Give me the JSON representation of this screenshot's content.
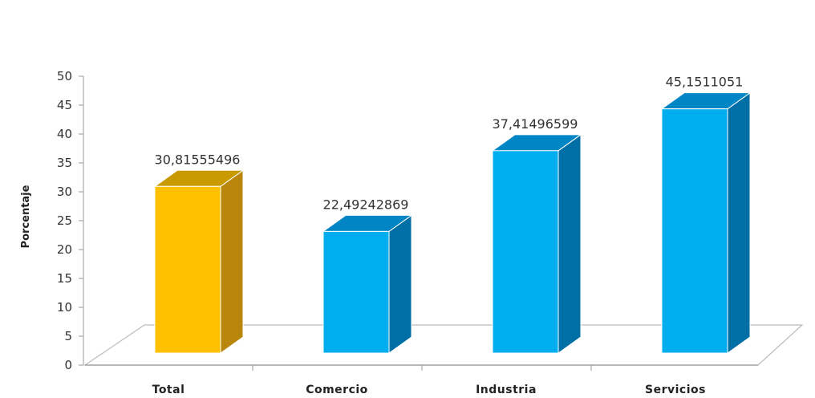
{
  "chart_data": {
    "type": "bar",
    "categories": [
      "Total",
      "Comercio",
      "Industria",
      "Servicios"
    ],
    "values": [
      30.81555496,
      22.49242869,
      37.41496599,
      45.1511051
    ],
    "data_labels": [
      "30,81555496",
      "22,49242869",
      "37,41496599",
      "45,1511051"
    ],
    "ylabel": "Porcentaje",
    "ylim": [
      0,
      50
    ],
    "yticks": [
      "0",
      "5",
      "10",
      "15",
      "20",
      "25",
      "30",
      "35",
      "40",
      "45",
      "50"
    ],
    "grid": false,
    "style": "3d",
    "colors": {
      "highlight_front": "#FFC000",
      "highlight_side": "#B8860B",
      "highlight_top": "#C99A00",
      "bar_front": "#00AEEF",
      "bar_side": "#006FA6",
      "bar_top": "#0086C4",
      "floor_line": "#BBBBBB"
    },
    "highlight_index": 0
  }
}
